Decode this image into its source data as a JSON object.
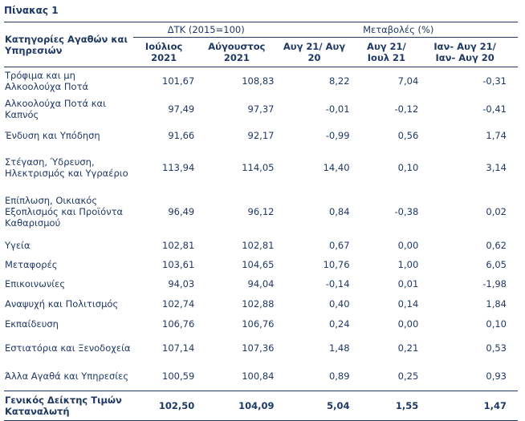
{
  "title": "Πίνακας 1",
  "header": {
    "category_label": "Κατηγορίες Αγαθών και Υπηρεσιών",
    "group_index": "ΔΤΚ (2015=100)",
    "group_change": "Μεταβολές (%)",
    "col1": "Ιούλιος 2021",
    "col2": "Αύγουστος 2021",
    "col3": "Αυγ 21/ Αυγ 20",
    "col4": "Αυγ 21/ Ιουλ 21",
    "col5": "Ιαν- Αυγ 21/ Ιαν- Αυγ 20"
  },
  "rows": [
    {
      "category": "Τρόφιμα και μη Αλκοολούχα Ποτά",
      "jul": "101,67",
      "aug": "108,83",
      "yoy": "8,22",
      "mom": "7,04",
      "ytd": "-0,31",
      "h": 34
    },
    {
      "category": "Αλκοολούχα Ποτά και Καπνός",
      "jul": "97,49",
      "aug": "97,37",
      "yoy": "-0,01",
      "mom": "-0,12",
      "ytd": "-0,41",
      "h": 36
    },
    {
      "category": "Ένδυση και Υπόδηση",
      "jul": "91,66",
      "aug": "92,17",
      "yoy": "-0,99",
      "mom": "0,56",
      "ytd": "1,74",
      "h": 30
    },
    {
      "category": "Στέγαση, Ύδρευση, Ηλεκτρισμός και Υγραέριο",
      "jul": "113,94",
      "aug": "114,05",
      "yoy": "14,40",
      "mom": "0,10",
      "ytd": "3,14",
      "h": 50
    },
    {
      "category": "Επίπλωση, Οικιακός Εξοπλισμός και Προϊόντα Καθαρισμού",
      "jul": "96,49",
      "aug": "96,12",
      "yoy": "0,84",
      "mom": "-0,38",
      "ytd": "0,02",
      "h": 60
    },
    {
      "category": "Υγεία",
      "jul": "102,81",
      "aug": "102,81",
      "yoy": "0,67",
      "mom": "0,00",
      "ytd": "0,62",
      "h": 24
    },
    {
      "category": "Μεταφορές",
      "jul": "103,61",
      "aug": "104,65",
      "yoy": "10,76",
      "mom": "1,00",
      "ytd": "6,05",
      "h": 24
    },
    {
      "category": "Επικοινωνίες",
      "jul": "94,03",
      "aug": "94,04",
      "yoy": "-0,14",
      "mom": "0,01",
      "ytd": "-1,98",
      "h": 24
    },
    {
      "category": "Αναψυχή και Πολιτισμός",
      "jul": "102,74",
      "aug": "102,88",
      "yoy": "0,40",
      "mom": "0,14",
      "ytd": "1,84",
      "h": 26
    },
    {
      "category": "Εκπαίδευση",
      "jul": "106,76",
      "aug": "106,76",
      "yoy": "0,24",
      "mom": "0,00",
      "ytd": "0,10",
      "h": 24
    },
    {
      "category": "Εστιατόρια και Ξενοδοχεία",
      "jul": "107,14",
      "aug": "107,36",
      "yoy": "1,48",
      "mom": "0,21",
      "ytd": "0,53",
      "h": 36
    },
    {
      "category": "Άλλα Αγαθά και Υπηρεσίες",
      "jul": "100,59",
      "aug": "100,84",
      "yoy": "0,89",
      "mom": "0,25",
      "ytd": "0,93",
      "h": 36
    }
  ],
  "total": {
    "category": "Γενικός Δείκτης Τιμών Καταναλωτή",
    "jul": "102,50",
    "aug": "104,09",
    "yoy": "5,04",
    "mom": "1,55",
    "ytd": "1,47"
  }
}
